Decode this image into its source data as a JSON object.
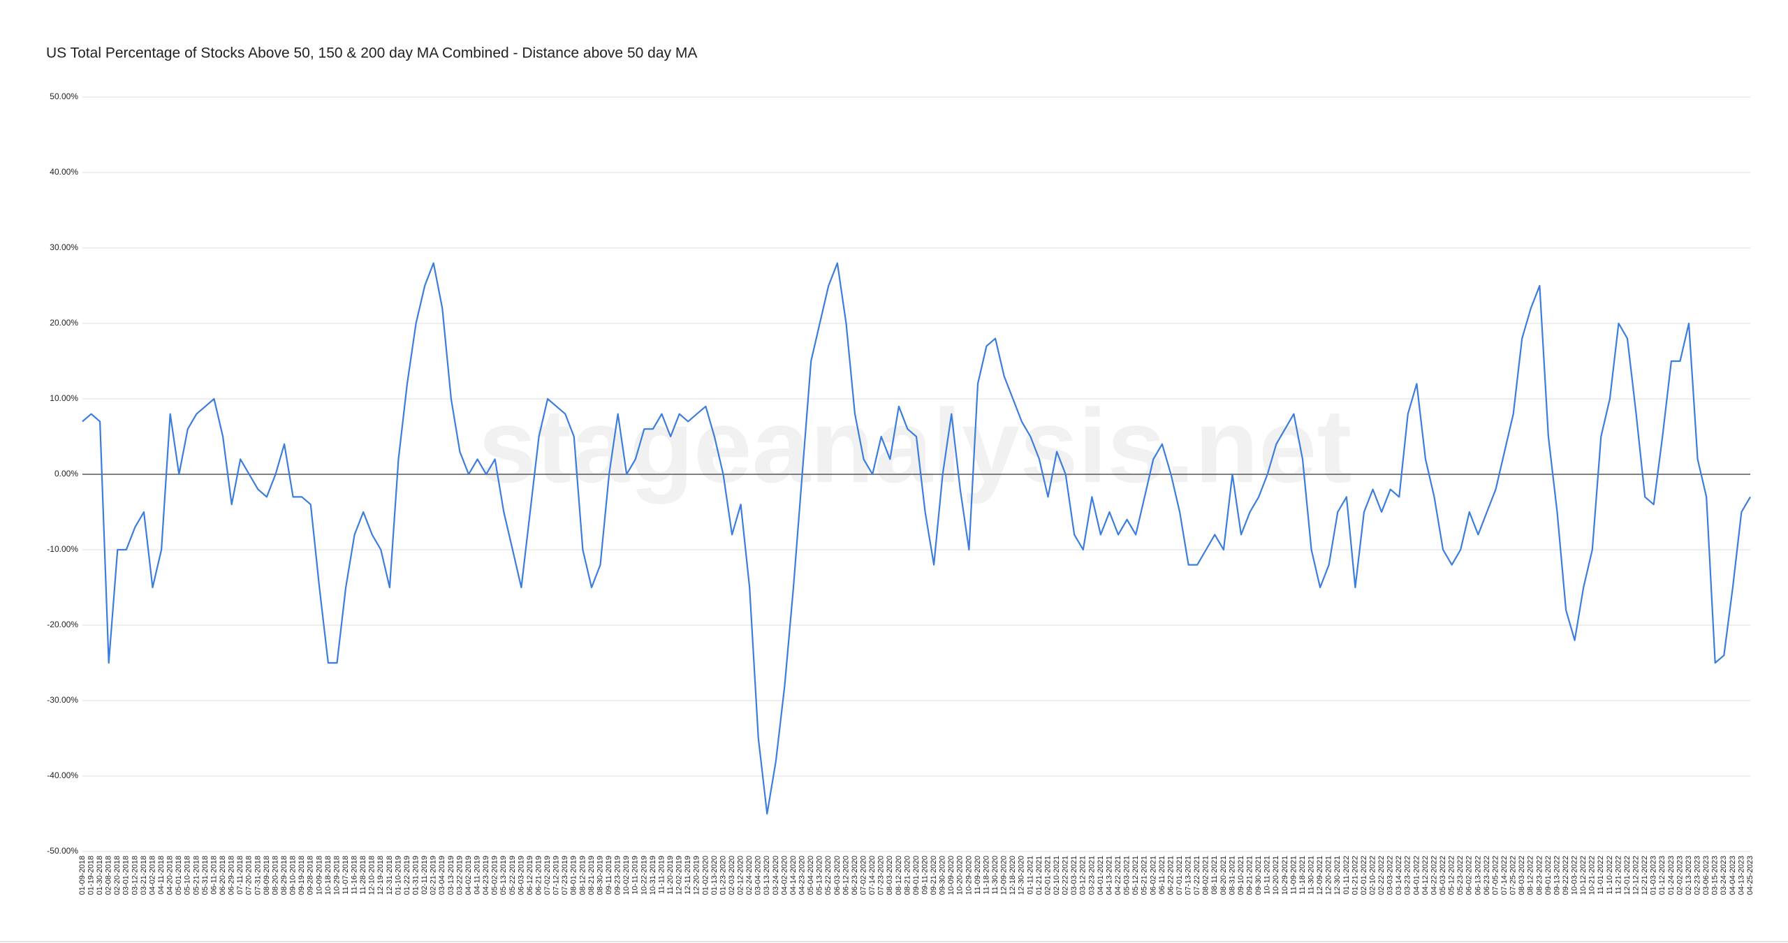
{
  "chart_data": {
    "type": "line",
    "title": "US Total Percentage of Stocks Above 50, 150 & 200 day MA Combined - Distance above 50 day MA",
    "watermark": "stageanalysis.net",
    "categories": [
      "01-09-2018",
      "01-19-2018",
      "01-30-2018",
      "02-08-2018",
      "02-20-2018",
      "03-01-2018",
      "03-12-2018",
      "03-21-2018",
      "04-02-2018",
      "04-11-2018",
      "04-20-2018",
      "05-01-2018",
      "05-10-2018",
      "05-21-2018",
      "05-31-2018",
      "06-11-2018",
      "06-20-2018",
      "06-29-2018",
      "07-11-2018",
      "07-20-2018",
      "07-31-2018",
      "08-09-2018",
      "08-20-2018",
      "08-29-2018",
      "09-10-2018",
      "09-19-2018",
      "09-28-2018",
      "10-09-2018",
      "10-18-2018",
      "10-29-2018",
      "11-07-2018",
      "11-16-2018",
      "11-28-2018",
      "12-10-2018",
      "12-19-2018",
      "12-31-2018",
      "01-10-2019",
      "01-22-2019",
      "01-31-2019",
      "02-11-2019",
      "02-21-2019",
      "03-04-2019",
      "03-13-2019",
      "03-22-2019",
      "04-02-2019",
      "04-11-2019",
      "04-23-2019",
      "05-02-2019",
      "05-13-2019",
      "05-22-2019",
      "06-03-2019",
      "06-12-2019",
      "06-21-2019",
      "07-02-2019",
      "07-12-2019",
      "07-23-2019",
      "08-01-2019",
      "08-12-2019",
      "08-21-2019",
      "08-30-2019",
      "09-11-2019",
      "09-23-2019",
      "10-02-2019",
      "10-11-2019",
      "10-22-2019",
      "10-31-2019",
      "11-11-2019",
      "11-20-2019",
      "12-02-2019",
      "12-11-2019",
      "12-20-2019",
      "01-02-2020",
      "01-13-2020",
      "01-23-2020",
      "02-03-2020",
      "02-12-2020",
      "02-24-2020",
      "03-04-2020",
      "03-13-2020",
      "03-24-2020",
      "04-02-2020",
      "04-14-2020",
      "04-23-2020",
      "05-04-2020",
      "05-13-2020",
      "05-22-2020",
      "06-03-2020",
      "06-12-2020",
      "06-23-2020",
      "07-02-2020",
      "07-14-2020",
      "07-23-2020",
      "08-03-2020",
      "08-12-2020",
      "08-21-2020",
      "09-01-2020",
      "09-11-2020",
      "09-21-2020",
      "09-30-2020",
      "10-09-2020",
      "10-20-2020",
      "10-29-2020",
      "11-09-2020",
      "11-18-2020",
      "11-30-2020",
      "12-09-2020",
      "12-18-2020",
      "12-30-2020",
      "01-11-2021",
      "01-21-2021",
      "02-01-2021",
      "02-10-2021",
      "02-22-2021",
      "03-03-2021",
      "03-12-2021",
      "03-23-2021",
      "04-01-2021",
      "04-13-2021",
      "04-22-2021",
      "05-03-2021",
      "05-12-2021",
      "05-21-2021",
      "06-02-2021",
      "06-11-2021",
      "06-22-2021",
      "07-01-2021",
      "07-13-2021",
      "07-22-2021",
      "08-02-2021",
      "08-11-2021",
      "08-20-2021",
      "08-31-2021",
      "09-10-2021",
      "09-21-2021",
      "09-30-2021",
      "10-11-2021",
      "10-20-2021",
      "10-29-2021",
      "11-09-2021",
      "11-18-2021",
      "11-30-2021",
      "12-09-2021",
      "12-20-2021",
      "12-30-2021",
      "01-11-2022",
      "01-21-2022",
      "02-01-2022",
      "02-10-2022",
      "02-22-2022",
      "03-03-2022",
      "03-14-2022",
      "03-23-2022",
      "04-01-2022",
      "04-12-2022",
      "04-22-2022",
      "05-03-2022",
      "05-12-2022",
      "05-23-2022",
      "06-02-2022",
      "06-13-2022",
      "06-23-2022",
      "07-05-2022",
      "07-14-2022",
      "07-25-2022",
      "08-03-2022",
      "08-12-2022",
      "08-23-2022",
      "09-01-2022",
      "09-13-2022",
      "09-22-2022",
      "10-03-2022",
      "10-12-2022",
      "10-21-2022",
      "11-01-2022",
      "11-10-2022",
      "11-21-2022",
      "12-01-2022",
      "12-12-2022",
      "12-21-2022",
      "01-03-2023",
      "01-12-2023",
      "01-24-2023",
      "02-02-2023",
      "02-13-2023",
      "02-23-2023",
      "03-06-2023",
      "03-15-2023",
      "03-24-2023",
      "04-04-2023",
      "04-13-2023",
      "04-25-2023"
    ],
    "values": [
      7,
      8,
      7,
      -25,
      -10,
      -10,
      -7,
      -5,
      -15,
      -10,
      8,
      0,
      6,
      8,
      9,
      10,
      5,
      -4,
      2,
      0,
      -2,
      -3,
      0,
      4,
      -3,
      -3,
      -4,
      -15,
      -25,
      -25,
      -15,
      -8,
      -5,
      -8,
      -10,
      -15,
      2,
      12,
      20,
      25,
      28,
      22,
      10,
      3,
      0,
      2,
      0,
      2,
      -5,
      -10,
      -15,
      -5,
      5,
      10,
      9,
      8,
      5,
      -10,
      -15,
      -12,
      0,
      8,
      0,
      2,
      6,
      6,
      8,
      5,
      8,
      7,
      8,
      9,
      5,
      0,
      -8,
      -4,
      -15,
      -35,
      -45,
      -38,
      -28,
      -15,
      0,
      15,
      20,
      25,
      28,
      20,
      8,
      2,
      0,
      5,
      2,
      9,
      6,
      5,
      -5,
      -12,
      0,
      8,
      -2,
      -10,
      12,
      17,
      18,
      13,
      10,
      7,
      5,
      2,
      -3,
      3,
      0,
      -8,
      -10,
      -3,
      -8,
      -5,
      -8,
      -6,
      -8,
      -3,
      2,
      4,
      0,
      -5,
      -12,
      -12,
      -10,
      -8,
      -10,
      0,
      -8,
      -5,
      -3,
      0,
      4,
      6,
      8,
      2,
      -10,
      -15,
      -12,
      -5,
      -3,
      -15,
      -5,
      -2,
      -5,
      -2,
      -3,
      8,
      12,
      2,
      -3,
      -10,
      -12,
      -10,
      -5,
      -8,
      -5,
      -2,
      3,
      8,
      18,
      22,
      25,
      5,
      -5,
      -18,
      -22,
      -15,
      -10,
      5,
      10,
      20,
      18,
      8,
      -3,
      -4,
      5,
      15,
      15,
      20,
      2,
      -3,
      -25,
      -24,
      -15,
      -5,
      -3
    ],
    "color": "#3b7ddd",
    "ylim": [
      -50,
      50
    ],
    "yticks": [
      {
        "value": -50,
        "label": "-50.00%"
      },
      {
        "value": -40,
        "label": "-40.00%"
      },
      {
        "value": -30,
        "label": "-30.00%"
      },
      {
        "value": -20,
        "label": "-20.00%"
      },
      {
        "value": -10,
        "label": "-10.00%"
      },
      {
        "value": 0,
        "label": "0.00%"
      },
      {
        "value": 10,
        "label": "10.00%"
      },
      {
        "value": 20,
        "label": "20.00%"
      },
      {
        "value": 30,
        "label": "30.00%"
      },
      {
        "value": 40,
        "label": "40.00%"
      },
      {
        "value": 50,
        "label": "50.00%"
      }
    ],
    "grid": true
  }
}
